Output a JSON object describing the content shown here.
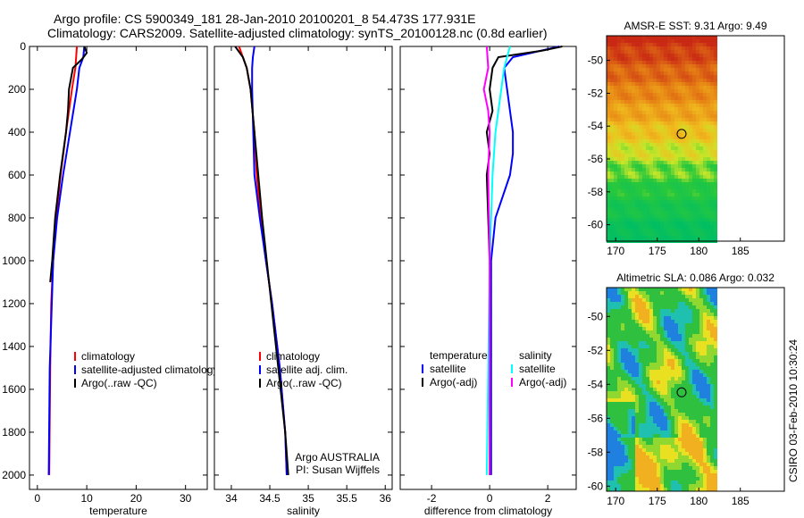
{
  "title_line1": "Argo profile: CS 5900349_181 28-Jan-2010 20100201_8 54.473S 177.931E",
  "title_line2": "Climatology: CARS2009. Satellite-adjusted climatology: synTS_20100128.nc (0.8d earlier)",
  "side_label": "CSIRO 03-Feb-2010 10:30:24",
  "chart_data": [
    {
      "type": "line",
      "xlabel": "temperature",
      "ylabel": "",
      "xlim": [
        -1.6,
        34.4
      ],
      "ylim": [
        2067,
        0
      ],
      "xticks": [
        0,
        10,
        20,
        30
      ],
      "yticks": [
        0,
        200,
        400,
        600,
        800,
        1000,
        1200,
        1400,
        1600,
        1800,
        2000
      ],
      "legend": [
        "climatology",
        "satellite-adjusted climatology",
        "Argo(..raw -QC)"
      ],
      "series": [
        {
          "name": "climatology",
          "color": "#ff0000",
          "x": [
            8.0,
            7.7,
            7.0,
            5.8,
            4.7,
            3.8,
            3.2,
            2.8,
            2.6,
            2.4
          ],
          "depth": [
            0,
            100,
            200,
            400,
            600,
            800,
            1000,
            1200,
            1500,
            2000
          ]
        },
        {
          "name": "satellite-adjusted climatology",
          "color": "#0000ff",
          "x": [
            9.5,
            9.3,
            8.5,
            8.0,
            7.3,
            6.6,
            5.2,
            4.0,
            3.2,
            2.5,
            2.3
          ],
          "depth": [
            0,
            50,
            100,
            200,
            300,
            400,
            600,
            800,
            1000,
            1500,
            2000
          ]
        },
        {
          "name": "Argo(..raw -QC)",
          "color": "#000000",
          "x": [
            9.5,
            10.0,
            9.0,
            7.2,
            6.4,
            6.2,
            5.8,
            5.2,
            4.6,
            3.6,
            3.0,
            2.6
          ],
          "depth": [
            0,
            30,
            60,
            100,
            200,
            300,
            400,
            500,
            600,
            800,
            1000,
            1100
          ]
        }
      ],
      "annotations": []
    },
    {
      "type": "line",
      "xlabel": "salinity",
      "xlim": [
        33.78,
        36.09
      ],
      "ylim": [
        2067,
        0
      ],
      "xticks": [
        34,
        34.5,
        35,
        35.5,
        36
      ],
      "yticks": [],
      "legend": [
        "climatology",
        "satellite adj. clim.",
        "Argo(..raw -QC)"
      ],
      "series": [
        {
          "name": "climatology",
          "color": "#ff0000",
          "x": [
            34.1,
            34.2,
            34.25,
            34.3,
            34.33,
            34.38,
            34.45,
            34.53,
            34.63,
            34.7,
            34.72
          ],
          "depth": [
            0,
            100,
            200,
            400,
            600,
            800,
            1000,
            1200,
            1500,
            1800,
            2000
          ]
        },
        {
          "name": "satellite adj. clim.",
          "color": "#0000ff",
          "x": [
            34.3,
            34.28,
            34.27,
            34.27,
            34.3,
            34.37,
            34.45,
            34.53,
            34.63,
            34.7,
            34.72
          ],
          "depth": [
            0,
            50,
            100,
            200,
            600,
            800,
            1000,
            1200,
            1500,
            1800,
            2000
          ]
        },
        {
          "name": "Argo(..raw -QC)",
          "color": "#000000",
          "x": [
            34.05,
            34.15,
            34.2,
            34.25,
            34.3,
            34.35,
            34.4,
            34.46,
            34.58,
            34.7,
            34.74
          ],
          "depth": [
            0,
            50,
            100,
            200,
            400,
            600,
            800,
            1000,
            1400,
            1800,
            2000
          ]
        }
      ],
      "annotations": [
        "Argo AUSTRALIA",
        "PI: Susan Wijffels"
      ]
    },
    {
      "type": "line",
      "xlabel": "difference from climatology",
      "xlim": [
        -3.08,
        2.98
      ],
      "ylim": [
        2067,
        0
      ],
      "xticks": [
        -2,
        0,
        2
      ],
      "yticks": [],
      "legend_headers": [
        "temperature",
        "salinity"
      ],
      "legend": [
        "satellite",
        "Argo(-adj)",
        "satellite",
        "Argo(-adj)"
      ],
      "series": [
        {
          "name": "temperature satellite",
          "color": "#0000ff",
          "x": [
            2.4,
            0.8,
            0.5,
            0.6,
            0.7,
            0.8,
            0.8,
            0.7,
            0.2,
            0.05,
            0.05
          ],
          "depth": [
            0,
            50,
            100,
            200,
            300,
            400,
            500,
            600,
            800,
            1000,
            2000
          ]
        },
        {
          "name": "temperature Argo(-adj)",
          "color": "#000000",
          "x": [
            2.5,
            1.8,
            0.3,
            0.1,
            0.0,
            0.1,
            -0.1,
            0.0,
            -0.1,
            0.0,
            0.0
          ],
          "depth": [
            0,
            20,
            50,
            100,
            200,
            300,
            400,
            500,
            600,
            1000,
            2000
          ]
        },
        {
          "name": "salinity satellite",
          "color": "#00ffff",
          "x": [
            0.7,
            0.6,
            0.5,
            0.4,
            0.2,
            0.1,
            0.0,
            -0.1
          ],
          "depth": [
            0,
            50,
            100,
            200,
            400,
            600,
            1000,
            2000
          ]
        },
        {
          "name": "salinity Argo(-adj)",
          "color": "#ff00ff",
          "x": [
            -0.1,
            -0.05,
            -0.2,
            -0.05,
            0.0,
            -0.05,
            0.0,
            0.0
          ],
          "depth": [
            0,
            100,
            200,
            300,
            400,
            600,
            1000,
            2000
          ]
        }
      ]
    },
    {
      "type": "heatmap",
      "title": "AMSR-E SST: 9.31 Argo: 9.49",
      "xlim": [
        168.9,
        190.3
      ],
      "ylim": [
        -61.0,
        -48.5
      ],
      "xticks": [
        170,
        175,
        180,
        185
      ],
      "yticks": [
        -50,
        -52,
        -54,
        -56,
        -58,
        -60
      ],
      "marker": {
        "lon": 177.931,
        "lat": -54.473
      }
    },
    {
      "type": "heatmap",
      "title": "Altimetric SLA: 0.086 Argo: 0.032",
      "xlim": [
        168.9,
        190.3
      ],
      "ylim": [
        -60.3,
        -48.3
      ],
      "xticks": [
        170,
        175,
        180,
        185
      ],
      "yticks": [
        -50,
        -52,
        -54,
        -56,
        -58,
        -60
      ],
      "marker": {
        "lon": 177.931,
        "lat": -54.473
      }
    }
  ]
}
